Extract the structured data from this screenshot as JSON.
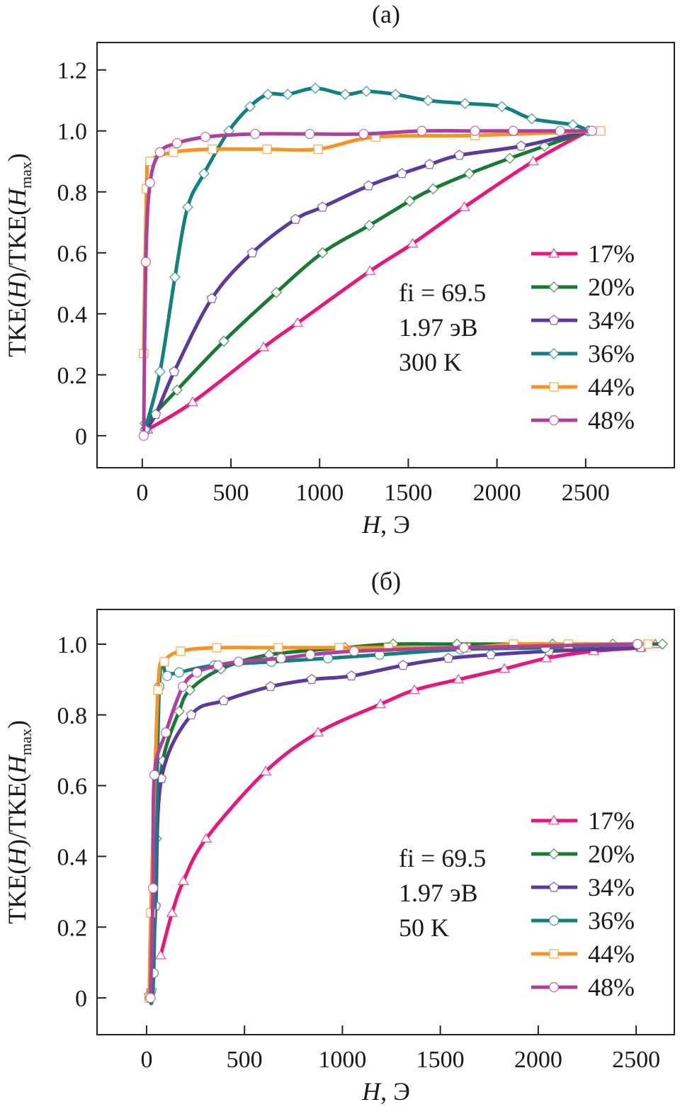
{
  "chart_data": [
    {
      "type": "line",
      "panel_label": "(a)",
      "xlabel_parts": [
        "H",
        ", Э"
      ],
      "ylabel_parts": [
        "TKE(",
        "H",
        ")/TKE(",
        "H",
        "max",
        ")"
      ],
      "xlim": [
        -255,
        3000
      ],
      "ylim": [
        -0.105,
        1.29
      ],
      "xticks": [
        0,
        500,
        1000,
        1500,
        2000,
        2500
      ],
      "xtick_labels": [
        "0",
        "500",
        "1000",
        "1500",
        "2000",
        "2500"
      ],
      "yticks": [
        0,
        0.2,
        0.4,
        0.6,
        0.8,
        1.0,
        1.2
      ],
      "ytick_labels": [
        "0",
        "0.2",
        "0.4",
        "0.6",
        "0.8",
        "1.0",
        "1.2"
      ],
      "grid": false,
      "legend_position": "right",
      "annotations": [
        "fi = 69.5",
        "1.97 эВ",
        "300 K"
      ],
      "series": [
        {
          "name": "17%",
          "color": "#e8187a",
          "marker": "triangle",
          "x": [
            30,
            284,
            684,
            876,
            1284,
            1524,
            1816,
            2204,
            2516
          ],
          "y": [
            0.02,
            0.11,
            0.29,
            0.37,
            0.54,
            0.63,
            0.75,
            0.9,
            1.0
          ]
        },
        {
          "name": "20%",
          "color": "#1a7a35",
          "marker": "diamond",
          "x": [
            16,
            196,
            460,
            756,
            1016,
            1280,
            1508,
            1640,
            1844,
            2072,
            2268,
            2516
          ],
          "y": [
            0.04,
            0.15,
            0.31,
            0.47,
            0.6,
            0.69,
            0.77,
            0.81,
            0.86,
            0.91,
            0.95,
            1.0
          ]
        },
        {
          "name": "34%",
          "color": "#5b3a9c",
          "marker": "pentagon",
          "x": [
            20,
            76,
            180,
            392,
            620,
            864,
            1016,
            1276,
            1464,
            1620,
            1788,
            2136,
            2516
          ],
          "y": [
            0.02,
            0.07,
            0.21,
            0.45,
            0.6,
            0.71,
            0.75,
            0.82,
            0.86,
            0.89,
            0.92,
            0.95,
            1.0
          ]
        },
        {
          "name": "36%",
          "color": "#118080",
          "marker": "diamond",
          "x": [
            16,
            100,
            184,
            256,
            348,
            488,
            608,
            708,
            820,
            976,
            1144,
            1264,
            1428,
            1612,
            1820,
            2028,
            2196,
            2428,
            2516
          ],
          "y": [
            0.02,
            0.21,
            0.52,
            0.75,
            0.86,
            1.0,
            1.08,
            1.12,
            1.12,
            1.14,
            1.12,
            1.13,
            1.12,
            1.1,
            1.09,
            1.08,
            1.04,
            1.02,
            1.0
          ]
        },
        {
          "name": "44%",
          "color": "#f7931e",
          "marker": "square",
          "x": [
            8,
            24,
            44,
            176,
            396,
            704,
            992,
            1316,
            1876,
            2584
          ],
          "y": [
            0.27,
            0.81,
            0.9,
            0.93,
            0.94,
            0.94,
            0.94,
            0.98,
            0.985,
            1.0
          ]
        },
        {
          "name": "48%",
          "color": "#b0409e",
          "marker": "circle",
          "x": [
            8,
            20,
            44,
            100,
            196,
            356,
            636,
            944,
            1248,
            1576,
            1876,
            2092,
            2356,
            2536
          ],
          "y": [
            0.0,
            0.57,
            0.83,
            0.93,
            0.96,
            0.98,
            0.99,
            0.99,
            0.99,
            1.0,
            1.0,
            1.0,
            1.0,
            1.0
          ]
        }
      ]
    },
    {
      "type": "line",
      "panel_label": "(б)",
      "xlabel_parts": [
        "H",
        ", Э"
      ],
      "ylabel_parts": [
        "TKE(",
        "H",
        ")/TKE(",
        "H",
        "max",
        ")"
      ],
      "xlim": [
        -253,
        2695
      ],
      "ylim": [
        -0.104,
        1.098
      ],
      "xticks": [
        0,
        500,
        1000,
        1500,
        2000,
        2500
      ],
      "xtick_labels": [
        "0",
        "500",
        "1000",
        "1500",
        "2000",
        "2500"
      ],
      "yticks": [
        0,
        0.2,
        0.4,
        0.6,
        0.8,
        1.0
      ],
      "ytick_labels": [
        "0",
        "0.2",
        "0.4",
        "0.6",
        "0.8",
        "1.0"
      ],
      "grid": false,
      "legend_position": "right",
      "annotations": [
        "fi = 69.5",
        "1.97 эВ",
        "50 K"
      ],
      "series": [
        {
          "name": "17%",
          "color": "#e8187a",
          "marker": "triangle",
          "x": [
            72,
            130,
            188,
            304,
            608,
            876,
            1194,
            1368,
            1592,
            1827,
            2041,
            2283,
            2525,
            2598
          ],
          "y": [
            0.12,
            0.24,
            0.33,
            0.45,
            0.64,
            0.75,
            0.83,
            0.87,
            0.9,
            0.93,
            0.96,
            0.98,
            0.99,
            1.0
          ]
        },
        {
          "name": "20%",
          "color": "#1a7a35",
          "marker": "diamond",
          "x": [
            14,
            50,
            83,
            166,
            221,
            380,
            626,
            1013,
            1259,
            1585,
            2073,
            2381,
            2634
          ],
          "y": [
            0.01,
            0.45,
            0.67,
            0.81,
            0.87,
            0.93,
            0.97,
            0.99,
            1.0,
            1.0,
            1.0,
            1.0,
            1.0
          ]
        },
        {
          "name": "34%",
          "color": "#5b3a9c",
          "marker": "pentagon",
          "x": [
            25,
            47,
            76,
            228,
            394,
            633,
            843,
            1046,
            1310,
            1541,
            1758,
            2055,
            2525
          ],
          "y": [
            0.02,
            0.26,
            0.62,
            0.8,
            0.84,
            0.88,
            0.9,
            0.91,
            0.94,
            0.96,
            0.97,
            0.98,
            0.99
          ]
        },
        {
          "name": "36%",
          "color": "#118080",
          "marker": "circle",
          "x": [
            14,
            36,
            65,
            105,
            166,
            347,
            637,
            926,
            1190,
            1603,
            2037,
            2507
          ],
          "y": [
            0.0,
            0.07,
            0.88,
            0.91,
            0.92,
            0.94,
            0.95,
            0.96,
            0.97,
            0.985,
            0.99,
            1.0
          ]
        },
        {
          "name": "44%",
          "color": "#f7931e",
          "marker": "square",
          "x": [
            14,
            22,
            58,
            90,
            174,
            358,
            673,
            984,
            1234,
            1632,
            1874,
            2153,
            2561
          ],
          "y": [
            0.0,
            0.24,
            0.87,
            0.95,
            0.98,
            0.99,
            0.99,
            0.99,
            0.99,
            0.99,
            1.0,
            1.0,
            1.0
          ]
        },
        {
          "name": "48%",
          "color": "#b0409e",
          "marker": "circle",
          "x": [
            20,
            33,
            40,
            98,
            185,
            257,
            365,
            470,
            687,
            836,
            1060,
            1621,
            2507
          ],
          "y": [
            0.0,
            0.31,
            0.63,
            0.75,
            0.88,
            0.92,
            0.94,
            0.95,
            0.96,
            0.97,
            0.98,
            0.99,
            1.0
          ]
        }
      ]
    }
  ]
}
